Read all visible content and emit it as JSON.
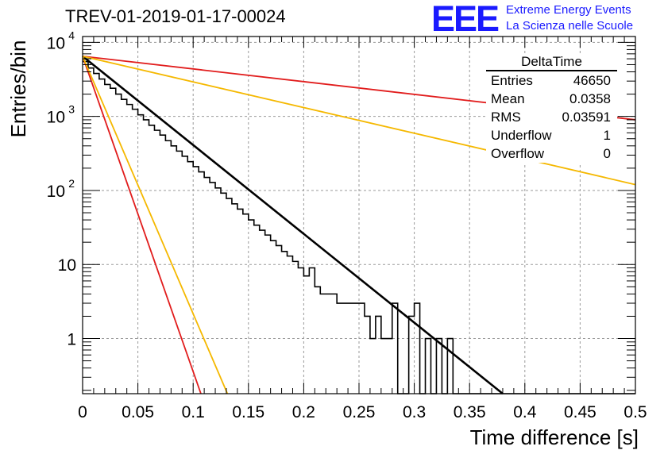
{
  "header": {
    "title": "TREV-01-2019-01-17-00024",
    "logo_text": "EEE",
    "logo_line1": "Extreme Energy Events",
    "logo_line2": "La Scienza nelle Scuole"
  },
  "stats_box": {
    "title": "DeltaTime",
    "rows": [
      {
        "label": "Entries",
        "value": "46650"
      },
      {
        "label": "Mean",
        "value": "0.0358"
      },
      {
        "label": "RMS",
        "value": "0.03591"
      },
      {
        "label": "Underflow",
        "value": "1"
      },
      {
        "label": "Overflow",
        "value": "0"
      }
    ]
  },
  "chart_data": {
    "type": "histogram",
    "title": "TREV-01-2019-01-17-00024",
    "xlabel": "Time difference [s]",
    "ylabel": "Entries/bin",
    "xlim": [
      0,
      0.5
    ],
    "ylim": [
      0.18,
      12000
    ],
    "y_scale": "log",
    "grid": true,
    "x_ticks": [
      "0",
      "0.05",
      "0.1",
      "0.15",
      "0.2",
      "0.25",
      "0.3",
      "0.35",
      "0.4",
      "0.45",
      "0.5"
    ],
    "y_ticks": [
      {
        "value": 1,
        "label": "1"
      },
      {
        "value": 10,
        "label": "10"
      },
      {
        "value": 100,
        "label": "10",
        "exp": "2"
      },
      {
        "value": 1000,
        "label": "10",
        "exp": "3"
      },
      {
        "value": 10000,
        "label": "10",
        "exp": "4"
      }
    ],
    "histogram": {
      "bin_width": 0.005,
      "color": "#000000",
      "counts": [
        5500,
        4500,
        3800,
        3200,
        2700,
        2400,
        2000,
        1700,
        1450,
        1250,
        1050,
        900,
        760,
        650,
        560,
        470,
        400,
        340,
        290,
        245,
        210,
        178,
        150,
        128,
        108,
        92,
        78,
        66,
        56,
        48,
        40,
        34,
        29,
        25,
        21,
        18,
        15,
        13,
        11,
        9,
        7,
        9,
        5,
        4,
        4,
        4,
        3,
        3,
        3,
        3,
        3,
        2,
        1,
        2,
        1,
        1,
        3,
        0,
        0,
        2,
        3,
        0,
        1,
        0,
        1,
        0,
        1,
        0,
        0,
        0,
        0,
        0,
        0,
        0,
        0,
        0,
        0,
        0,
        0,
        0,
        0,
        0,
        0,
        0,
        0,
        0,
        0,
        0,
        0,
        0,
        0,
        0,
        0,
        0,
        0,
        0,
        0,
        0,
        0,
        0
      ]
    },
    "lines": [
      {
        "color": "#000000",
        "points": [
          [
            0,
            6500
          ],
          [
            0.38,
            0.18
          ]
        ]
      },
      {
        "color": "#e11c1c",
        "points": [
          [
            0,
            6500
          ],
          [
            0.5,
            900
          ]
        ]
      },
      {
        "color": "#f5b800",
        "points": [
          [
            0,
            6500
          ],
          [
            0.5,
            120
          ]
        ]
      },
      {
        "color": "#e11c1c",
        "points": [
          [
            0,
            6500
          ],
          [
            0.107,
            0.18
          ]
        ]
      },
      {
        "color": "#f5b800",
        "points": [
          [
            0,
            6500
          ],
          [
            0.131,
            0.18
          ]
        ]
      }
    ]
  }
}
